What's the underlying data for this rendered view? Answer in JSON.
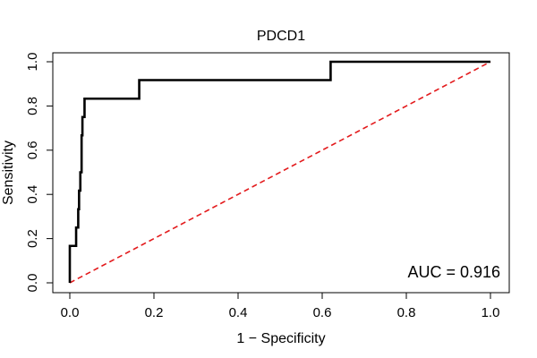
{
  "chart_data": {
    "type": "line",
    "title": "PDCD1",
    "xlabel": "1 − Specificity",
    "ylabel": "Sensitivity",
    "xlim": [
      0,
      1
    ],
    "ylim": [
      0,
      1
    ],
    "xticks": [
      0.0,
      0.2,
      0.4,
      0.6,
      0.8,
      1.0
    ],
    "xtick_labels": [
      "0.0",
      "0.2",
      "0.4",
      "0.6",
      "0.8",
      "1.0"
    ],
    "yticks": [
      0.0,
      0.2,
      0.4,
      0.6,
      0.8,
      1.0
    ],
    "ytick_labels": [
      "0.0",
      "0.2",
      "0.4",
      "0.6",
      "0.8",
      "1.0"
    ],
    "grid": false,
    "series": [
      {
        "name": "ROC curve",
        "style": "solid",
        "color": "#000000",
        "x": [
          0.0,
          0.0,
          0.015,
          0.015,
          0.02,
          0.02,
          0.022,
          0.022,
          0.025,
          0.025,
          0.028,
          0.028,
          0.03,
          0.03,
          0.035,
          0.035,
          0.04,
          0.04,
          0.165,
          0.165,
          0.62,
          0.62,
          1.0
        ],
        "y": [
          0.0,
          0.167,
          0.167,
          0.25,
          0.25,
          0.333,
          0.333,
          0.417,
          0.417,
          0.5,
          0.5,
          0.667,
          0.667,
          0.75,
          0.75,
          0.833,
          0.833,
          0.833,
          0.833,
          0.917,
          0.917,
          1.0,
          1.0
        ]
      },
      {
        "name": "Chance line",
        "style": "dashed",
        "color": "#e31a1c",
        "x": [
          0.0,
          1.0
        ],
        "y": [
          0.0,
          1.0
        ]
      }
    ],
    "annotations": [
      {
        "text": "AUC = 0.916",
        "position": "bottom-right"
      }
    ]
  }
}
